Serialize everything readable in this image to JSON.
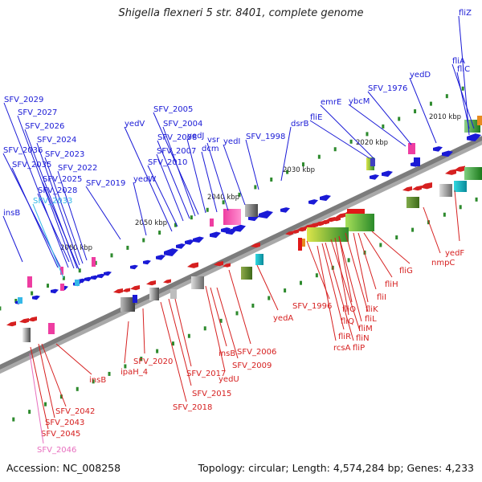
{
  "title": "Shigella flexneri 5 str. 8401, complete genome",
  "footer": {
    "accession": "Accession: NC_008258",
    "topology": "Topology: circular; Length: 4,574,284 bp; Genes: 4,233"
  },
  "colors": {
    "top": "#1a1ad6",
    "bottom": "#d62020",
    "pink": "#e86fbf",
    "cyan": "#35b8e8",
    "tick": "#2d8a2d"
  },
  "kbp_labels": [
    {
      "text": "2010 kbp",
      "ax": 1.5
    },
    {
      "text": "2020 kbp",
      "ax": 1.95
    },
    {
      "text": "2030 kbp",
      "ax": 2.6
    },
    {
      "text": "2040 kbp",
      "ax": 3.85
    },
    {
      "text": "2050 kbp",
      "ax": 4.55
    },
    {
      "text": "2060 kbp",
      "ax": 5.95
    }
  ],
  "top_labels": [
    {
      "name": "fliZ",
      "color": "#1a1ad6"
    },
    {
      "name": "fliA",
      "color": "#1a1ad6"
    },
    {
      "name": "fliC",
      "color": "#1a1ad6"
    },
    {
      "name": "yedD",
      "color": "#1a1ad6"
    },
    {
      "name": "SFV_1976",
      "color": "#1a1ad6"
    },
    {
      "name": "ybcM",
      "color": "#1a1ad6"
    },
    {
      "name": "emrE",
      "color": "#1a1ad6"
    },
    {
      "name": "fliE",
      "color": "#1a1ad6"
    },
    {
      "name": "dsrB",
      "color": "#1a1ad6"
    },
    {
      "name": "SFV_1998",
      "color": "#1a1ad6"
    },
    {
      "name": "yedI",
      "color": "#1a1ad6"
    },
    {
      "name": "vsr",
      "color": "#1a1ad6"
    },
    {
      "name": "dcm",
      "color": "#1a1ad6"
    },
    {
      "name": "yedJ",
      "color": "#1a1ad6"
    },
    {
      "name": "SFV_2005",
      "color": "#1a1ad6"
    },
    {
      "name": "SFV_2004",
      "color": "#1a1ad6"
    },
    {
      "name": "SFV_2008",
      "color": "#1a1ad6"
    },
    {
      "name": "SFV_2007",
      "color": "#1a1ad6"
    },
    {
      "name": "SFV_2010",
      "color": "#1a1ad6"
    },
    {
      "name": "yedV",
      "color": "#1a1ad6"
    },
    {
      "name": "yedW",
      "color": "#1a1ad6"
    },
    {
      "name": "SFV_2019",
      "color": "#1a1ad6"
    },
    {
      "name": "SFV_2029",
      "color": "#1a1ad6"
    },
    {
      "name": "SFV_2027",
      "color": "#1a1ad6"
    },
    {
      "name": "SFV_2026",
      "color": "#1a1ad6"
    },
    {
      "name": "SFV_2024",
      "color": "#1a1ad6"
    },
    {
      "name": "SFV_2036",
      "color": "#1a1ad6"
    },
    {
      "name": "SFV_2023",
      "color": "#1a1ad6"
    },
    {
      "name": "SFV_2035",
      "color": "#1a1ad6"
    },
    {
      "name": "SFV_2022",
      "color": "#1a1ad6"
    },
    {
      "name": "SFV_2025",
      "color": "#1a1ad6"
    },
    {
      "name": "SFV_2028",
      "color": "#1a1ad6"
    },
    {
      "name": "SFV_2033",
      "color": "#35b8e8"
    },
    {
      "name": "insB",
      "color": "#1a1ad6"
    }
  ],
  "bottom_labels": [
    {
      "name": "yedF",
      "color": "#d62020"
    },
    {
      "name": "nmpC",
      "color": "#d62020"
    },
    {
      "name": "fliG",
      "color": "#d62020"
    },
    {
      "name": "fliH",
      "color": "#d62020"
    },
    {
      "name": "fliI",
      "color": "#d62020"
    },
    {
      "name": "fliK",
      "color": "#d62020"
    },
    {
      "name": "fliO",
      "color": "#d62020"
    },
    {
      "name": "fliL",
      "color": "#d62020"
    },
    {
      "name": "fliQ",
      "color": "#d62020"
    },
    {
      "name": "fliM",
      "color": "#d62020"
    },
    {
      "name": "SFV_1996",
      "color": "#d62020"
    },
    {
      "name": "fliN",
      "color": "#d62020"
    },
    {
      "name": "fliR",
      "color": "#d62020"
    },
    {
      "name": "fliP",
      "color": "#d62020"
    },
    {
      "name": "rcsA",
      "color": "#d62020"
    },
    {
      "name": "yedA",
      "color": "#d62020"
    },
    {
      "name": "SFV_2006",
      "color": "#d62020"
    },
    {
      "name": "insB",
      "color": "#d62020"
    },
    {
      "name": "SFV_2009",
      "color": "#d62020"
    },
    {
      "name": "yedU",
      "color": "#d62020"
    },
    {
      "name": "SFV_2017",
      "color": "#d62020"
    },
    {
      "name": "SFV_2015",
      "color": "#d62020"
    },
    {
      "name": "SFV_2018",
      "color": "#d62020"
    },
    {
      "name": "SFV_2020",
      "color": "#d62020"
    },
    {
      "name": "ipaH_4",
      "color": "#d62020"
    },
    {
      "name": "insB",
      "color": "#d62020"
    },
    {
      "name": "SFV_2042",
      "color": "#d62020"
    },
    {
      "name": "SFV_2043",
      "color": "#d62020"
    },
    {
      "name": "SFV_2045",
      "color": "#d62020"
    },
    {
      "name": "SFV_2046",
      "color": "#e86fbf"
    }
  ]
}
